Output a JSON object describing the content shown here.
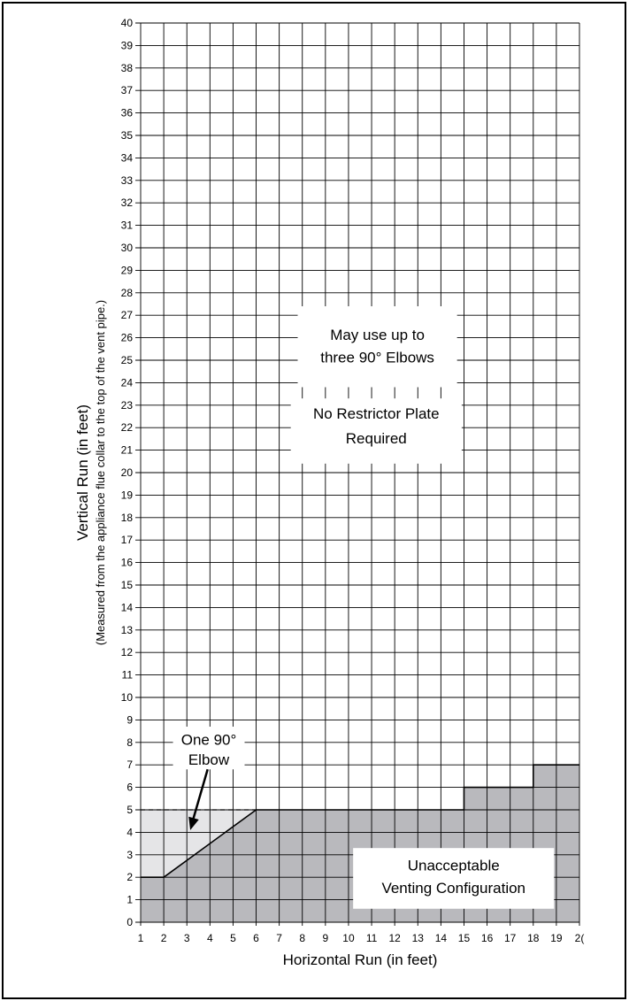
{
  "chart_data": {
    "type": "area",
    "xlabel": "Horizontal Run (in feet)",
    "ylabel": "Vertical Run (in feet)",
    "ylabel_sub": "(Measured from the appliance flue collar to the top of the vent pipe.)",
    "xlim": [
      1,
      20
    ],
    "ylim": [
      0,
      40
    ],
    "x_ticks": [
      1,
      2,
      3,
      4,
      5,
      6,
      7,
      8,
      9,
      10,
      11,
      12,
      13,
      14,
      15,
      16,
      17,
      18,
      19,
      20
    ],
    "x_tick_labels": [
      "1",
      "2",
      "3",
      "4",
      "5",
      "6",
      "7",
      "8",
      "9",
      "10",
      "11",
      "12",
      "13",
      "14",
      "15",
      "16",
      "17",
      "18",
      "19",
      "2("
    ],
    "y_ticks": [
      0,
      1,
      2,
      3,
      4,
      5,
      6,
      7,
      8,
      9,
      10,
      11,
      12,
      13,
      14,
      15,
      16,
      17,
      18,
      19,
      20,
      21,
      22,
      23,
      24,
      25,
      26,
      27,
      28,
      29,
      30,
      31,
      32,
      33,
      34,
      35,
      36,
      37,
      38,
      39,
      40
    ],
    "grid": true,
    "regions": [
      {
        "name": "Unacceptable Venting Configuration",
        "fill": "#b9b9bd",
        "boundary": [
          [
            1,
            2
          ],
          [
            2,
            2
          ],
          [
            6,
            5
          ],
          [
            15,
            5
          ],
          [
            15,
            6
          ],
          [
            18,
            6
          ],
          [
            18,
            7
          ],
          [
            20,
            7
          ]
        ]
      },
      {
        "name": "One 90° Elbow",
        "fill": "#e5e5e7",
        "boundary": [
          [
            1,
            2
          ],
          [
            2,
            2
          ],
          [
            6,
            5
          ],
          [
            1,
            5
          ]
        ]
      }
    ],
    "annotations": {
      "upper_box": {
        "lines": [
          "May use up to",
          "three 90° Elbows"
        ]
      },
      "middle_box": {
        "lines": [
          "No Restrictor Plate",
          "Required"
        ]
      },
      "elbow_label": {
        "lines": [
          "One 90°",
          "Elbow"
        ]
      },
      "unacceptable_box": {
        "lines": [
          "Unacceptable",
          "Venting Configuration"
        ]
      }
    }
  },
  "colors": {
    "unacceptable_fill": "#b9b9bd",
    "one_elbow_fill": "#e5e5e7",
    "grid": "#000000",
    "background": "#ffffff"
  }
}
